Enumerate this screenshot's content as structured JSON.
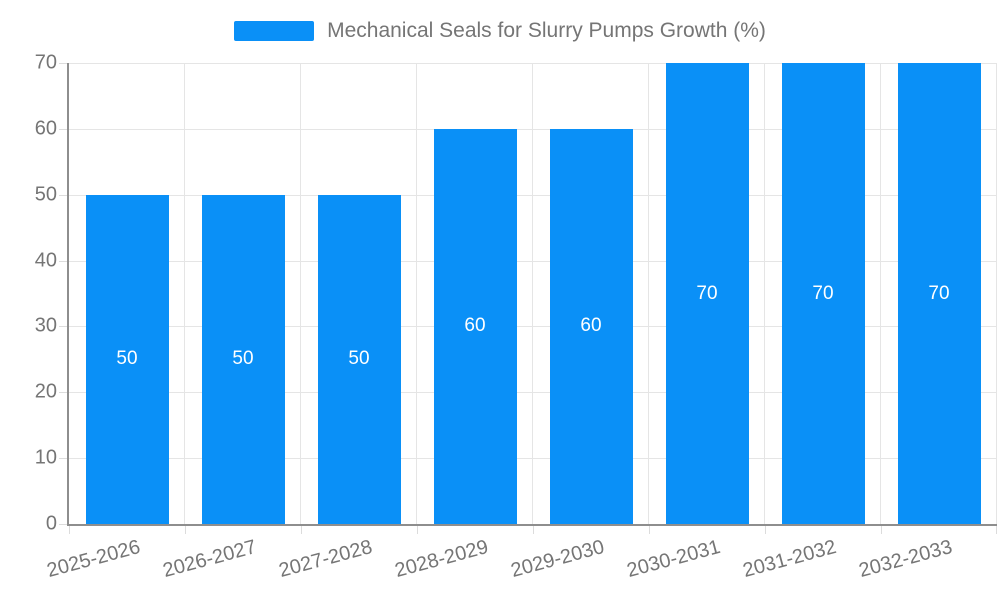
{
  "legend": {
    "label": "Mechanical Seals for Slurry Pumps Growth (%)"
  },
  "chart_data": {
    "type": "bar",
    "title": "Mechanical Seals for Slurry Pumps Growth (%)",
    "categories": [
      "2025-2026",
      "2026-2027",
      "2027-2028",
      "2028-2029",
      "2029-2030",
      "2030-2031",
      "2031-2032",
      "2032-2033"
    ],
    "values": [
      50,
      50,
      50,
      60,
      60,
      70,
      70,
      70
    ],
    "xlabel": "",
    "ylabel": "",
    "ylim": [
      0,
      70
    ],
    "yticks": [
      0,
      10,
      20,
      30,
      40,
      50,
      60,
      70
    ],
    "grid": true,
    "legend_position": "top",
    "bar_labels_inside": true
  },
  "colors": {
    "bar": "#0a90f7",
    "bar_value_label": "#ffffff",
    "axis_text": "#757575",
    "legend_text": "#757575",
    "grid_line": "#e5e5e5",
    "axis_line": "#8e8e8e",
    "background": "#ffffff"
  }
}
